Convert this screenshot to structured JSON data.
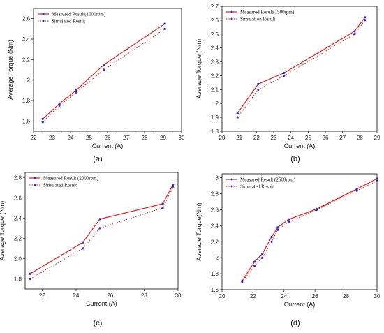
{
  "chart_data": [
    {
      "type": "line",
      "caption": "(a)",
      "xlabel": "Current (A)",
      "ylabel": "Average Torque (Nm)",
      "xlim": [
        22,
        30
      ],
      "ylim": [
        1.5,
        2.7
      ],
      "xticks": [
        22,
        22.5,
        23,
        23.5,
        24,
        24.5,
        25,
        25.5,
        26,
        26.5,
        27,
        27.5,
        28,
        28.5,
        29,
        29.5,
        30
      ],
      "xtick_labels": [
        "22",
        "",
        "23",
        "",
        "24",
        "",
        "25",
        "",
        "26",
        "",
        "27",
        "",
        "28",
        "",
        "29",
        "",
        "30"
      ],
      "yticks": [
        1.6,
        1.8,
        2.0,
        2.2,
        2.4,
        2.6
      ],
      "ytick_labels": [
        "1.6",
        "1.8",
        "2",
        "2.2",
        "2.4",
        "2.6"
      ],
      "legend_position": "top-left",
      "series": [
        {
          "name": "Measured Result(1000rpm)",
          "style": "solid",
          "color": "#e02020",
          "x": [
            22.5,
            23.4,
            24.3,
            25.8,
            29.1
          ],
          "y": [
            1.62,
            1.77,
            1.9,
            2.15,
            2.55
          ]
        },
        {
          "name": "Simulated Result",
          "style": "dotted",
          "color": "#e02020",
          "x": [
            22.5,
            23.4,
            24.3,
            25.8,
            29.1
          ],
          "y": [
            1.59,
            1.75,
            1.88,
            2.1,
            2.5
          ]
        }
      ]
    },
    {
      "type": "line",
      "caption": "(b)",
      "xlabel": "Current (A)",
      "ylabel": "Average Torque (Nm)",
      "xlim": [
        20,
        29
      ],
      "ylim": [
        1.8,
        2.7
      ],
      "xticks": [
        20,
        21,
        22,
        23,
        24,
        25,
        26,
        27,
        28,
        29
      ],
      "xtick_labels": [
        "20",
        "21",
        "22",
        "23",
        "24",
        "25",
        "26",
        "27",
        "28",
        "29"
      ],
      "yticks": [
        1.8,
        1.9,
        2.0,
        2.1,
        2.2,
        2.3,
        2.4,
        2.5,
        2.6,
        2.7
      ],
      "ytick_labels": [
        "1.8",
        "1.9",
        "2",
        "2.1",
        "2.2",
        "2.3",
        "2.4",
        "2.5",
        "2.6",
        "2.7"
      ],
      "legend_position": "top-left",
      "series": [
        {
          "name": "Measured Result(1500rpm)",
          "style": "solid",
          "color": "#e02020",
          "x": [
            20.9,
            22.1,
            23.6,
            27.7,
            28.3
          ],
          "y": [
            1.93,
            2.14,
            2.22,
            2.52,
            2.62
          ]
        },
        {
          "name": "Simulation Result",
          "style": "dotted",
          "color": "#e02020",
          "x": [
            20.9,
            22.1,
            23.6,
            27.7,
            28.3
          ],
          "y": [
            1.9,
            2.1,
            2.2,
            2.5,
            2.6
          ]
        }
      ]
    },
    {
      "type": "line",
      "caption": "(c)",
      "xlabel": "Current (A)",
      "ylabel": "Average Torque (Nm)",
      "xlim": [
        21,
        30
      ],
      "ylim": [
        1.7,
        2.85
      ],
      "xticks": [
        22,
        24,
        26,
        28,
        30
      ],
      "xtick_labels": [
        "22",
        "24",
        "26",
        "28",
        "30"
      ],
      "yticks": [
        1.8,
        2.0,
        2.2,
        2.4,
        2.6,
        2.8
      ],
      "ytick_labels": [
        "1.8",
        "2.0",
        "2.2",
        "2.4",
        "2.6",
        "2.8"
      ],
      "legend_position": "top-left",
      "series": [
        {
          "name": "Measured Result (2000rpm)",
          "style": "solid",
          "color": "#e02020",
          "x": [
            21.3,
            24.4,
            25.4,
            29.1,
            29.7
          ],
          "y": [
            1.85,
            2.16,
            2.39,
            2.54,
            2.73
          ]
        },
        {
          "name": "Simulated Result",
          "style": "dotted",
          "color": "#e02020",
          "x": [
            21.3,
            24.4,
            25.4,
            29.1,
            29.7
          ],
          "y": [
            1.8,
            2.1,
            2.3,
            2.5,
            2.7
          ]
        }
      ]
    },
    {
      "type": "line",
      "caption": "(d)",
      "xlabel": "Current (A)",
      "ylabel": "Average Torque(Nm)",
      "xlim": [
        20,
        30
      ],
      "ylim": [
        1.6,
        3.05
      ],
      "xticks": [
        20,
        22,
        24,
        26,
        28,
        30
      ],
      "xtick_labels": [
        "20",
        "22",
        "24",
        "26",
        "28",
        "30"
      ],
      "yticks": [
        1.6,
        1.8,
        2.0,
        2.2,
        2.4,
        2.6,
        2.8,
        3.0
      ],
      "ytick_labels": [
        "1.6",
        "1.8",
        "2",
        "2.2",
        "2.4",
        "2.6",
        "2.8",
        "3"
      ],
      "legend_position": "top-left",
      "series": [
        {
          "name": "Measured Result (2500rpm)",
          "style": "solid",
          "color": "#e02020",
          "x": [
            21.3,
            22.1,
            22.6,
            23.2,
            23.6,
            24.3,
            26.1,
            28.7,
            30.0
          ],
          "y": [
            1.71,
            1.95,
            2.05,
            2.26,
            2.38,
            2.48,
            2.61,
            2.86,
            2.99
          ]
        },
        {
          "name": "Simulated Result",
          "style": "dotted",
          "color": "#e02020",
          "x": [
            21.3,
            22.1,
            22.6,
            23.2,
            23.6,
            24.3,
            26.1,
            28.7,
            30.0
          ],
          "y": [
            1.7,
            1.9,
            2.0,
            2.2,
            2.35,
            2.45,
            2.6,
            2.84,
            2.96
          ]
        }
      ]
    }
  ]
}
